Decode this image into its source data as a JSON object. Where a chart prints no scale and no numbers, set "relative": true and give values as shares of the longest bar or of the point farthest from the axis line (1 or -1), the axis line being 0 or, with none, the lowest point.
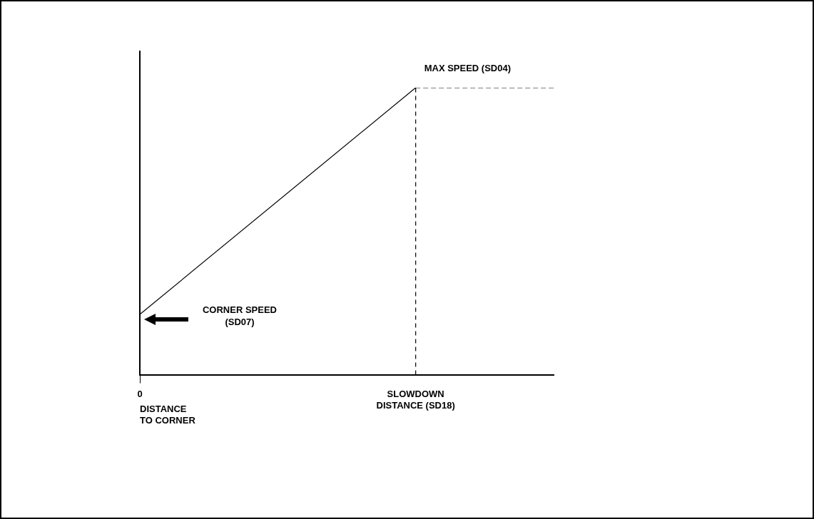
{
  "chart_data": {
    "type": "line",
    "relative": true,
    "marker": "none",
    "legend": false,
    "xlabel": "DISTANCE TO CORNER",
    "categories": [
      "0",
      null,
      null,
      null,
      "SLOWDOWN DISTANCE (SD18)",
      null,
      null
    ],
    "series": [
      {
        "color": "#000000",
        "values": [
          0.21,
          null,
          null,
          null,
          1,
          null,
          null
        ],
        "line_style": "solid"
      },
      {
        "color": "#000000",
        "values": [
          null,
          null,
          null,
          null,
          1,
          1,
          1
        ],
        "line_style": "dashed"
      }
    ],
    "ref_lines": [
      {
        "axis": "x",
        "value": "SLOWDOWN DISTANCE (SD18)",
        "color": "#000000",
        "line_style": "dashed"
      }
    ],
    "annotations": [
      {
        "text": "MAX SPEED (SD04)",
        "x": "SLOWDOWN DISTANCE (SD18)",
        "y": 1
      },
      "CORNER SPEED (SD07)"
    ]
  }
}
